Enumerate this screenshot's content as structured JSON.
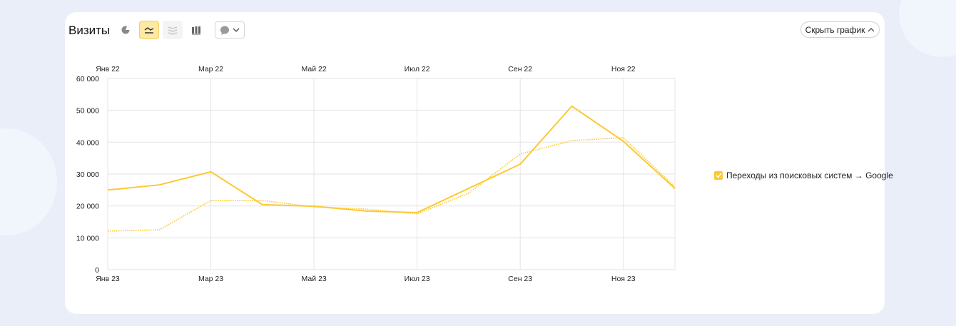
{
  "header": {
    "title": "Визиты",
    "hide_chart_label": "Скрыть график"
  },
  "toolbar": {
    "icons": [
      "pie-chart-icon",
      "line-chart-icon",
      "area-chart-icon",
      "bar-chart-icon",
      "comment-icon"
    ],
    "active": "line-chart-icon"
  },
  "colors": {
    "accent": "#fcc934",
    "highlight": "#fde9a4"
  },
  "legend": {
    "label": "Переходы из поисковых систем → Google"
  },
  "chart_data": {
    "type": "line",
    "title": "Визиты",
    "x_top_ticks": [
      "Янв 22",
      "Мар 22",
      "Май 22",
      "Июл 22",
      "Сен 22",
      "Ноя 22"
    ],
    "x_bottom_ticks": [
      "Янв 23",
      "Мар 23",
      "Май 23",
      "Июл 23",
      "Сен 23",
      "Ноя 23"
    ],
    "y_ticks": [
      "0",
      "10 000",
      "20 000",
      "30 000",
      "40 000",
      "50 000",
      "60 000"
    ],
    "ylim": [
      0,
      60000
    ],
    "grid": true,
    "legend_position": "right",
    "months": 12,
    "series": [
      {
        "name": "2023",
        "style": "solid",
        "values": [
          25000,
          26600,
          30700,
          20400,
          19900,
          18400,
          17900,
          25500,
          33100,
          51300,
          40300,
          25500
        ]
      },
      {
        "name": "2022",
        "style": "dotted",
        "values": [
          12100,
          12500,
          21700,
          21700,
          19700,
          19000,
          17500,
          24000,
          36300,
          40500,
          41400,
          26000
        ]
      }
    ]
  }
}
